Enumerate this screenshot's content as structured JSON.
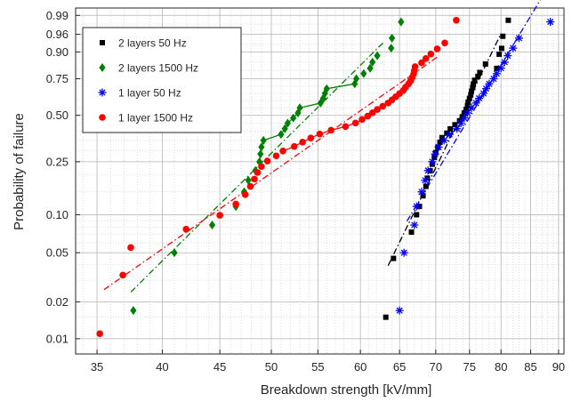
{
  "chart_data": {
    "type": "scatter",
    "title": "",
    "xlabel": "Breakdown strength [kV/mm]",
    "ylabel": "Probability of failure",
    "xscale": "log",
    "yscale": "weibull",
    "xlim": [
      33.5,
      91
    ],
    "ylim": [
      0.0075,
      0.995
    ],
    "grid": true,
    "legend_position": "top-left",
    "x_ticks": [
      35,
      40,
      45,
      50,
      55,
      60,
      65,
      70,
      75,
      80,
      85,
      90
    ],
    "x_tick_labels": [
      "35",
      "40",
      "45",
      "50",
      "55",
      "60",
      "65",
      "70",
      "75",
      "80",
      "85",
      "90"
    ],
    "y_ticks": [
      0.01,
      0.02,
      0.05,
      0.1,
      0.25,
      0.5,
      0.75,
      0.9,
      0.96,
      0.99
    ],
    "y_tick_labels": [
      "0.01",
      "0.02",
      "0.05",
      "0.10",
      "0.25",
      "0.50",
      "0.75",
      "0.90",
      "0.96",
      "0.99"
    ],
    "series": [
      {
        "name": "2 layers 50 Hz",
        "marker": "square",
        "color": "#000000",
        "points": [
          [
            63.2,
            0.015
          ],
          [
            64.2,
            0.045
          ],
          [
            66.6,
            0.073
          ],
          [
            67.3,
            0.1
          ],
          [
            67.7,
            0.116
          ],
          [
            68.2,
            0.14
          ],
          [
            68.6,
            0.165
          ],
          [
            68.8,
            0.19
          ],
          [
            69.2,
            0.215
          ],
          [
            69.5,
            0.24
          ],
          [
            69.8,
            0.268
          ],
          [
            70.0,
            0.29
          ],
          [
            70.3,
            0.315
          ],
          [
            70.6,
            0.34
          ],
          [
            70.9,
            0.365
          ],
          [
            71.6,
            0.39
          ],
          [
            72.1,
            0.415
          ],
          [
            72.8,
            0.44
          ],
          [
            73.5,
            0.465
          ],
          [
            73.9,
            0.49
          ],
          [
            74.2,
            0.515
          ],
          [
            74.5,
            0.54
          ],
          [
            74.7,
            0.565
          ],
          [
            74.8,
            0.59
          ],
          [
            75.0,
            0.615
          ],
          [
            75.2,
            0.64
          ],
          [
            75.3,
            0.665
          ],
          [
            75.5,
            0.69
          ],
          [
            75.6,
            0.715
          ],
          [
            75.8,
            0.74
          ],
          [
            76.3,
            0.765
          ],
          [
            76.6,
            0.79
          ],
          [
            77.5,
            0.84
          ],
          [
            79.3,
            0.815
          ],
          [
            79.7,
            0.89
          ],
          [
            80.1,
            0.915
          ],
          [
            80.3,
            0.955
          ],
          [
            81.2,
            0.985
          ]
        ],
        "fit": {
          "style": "dash-dot",
          "x_range": [
            63.5,
            80.0
          ]
        }
      },
      {
        "name": "2 layers 1500 Hz",
        "marker": "diamond",
        "color": "#007f00",
        "points": [
          [
            37.7,
            0.017
          ],
          [
            41.0,
            0.05
          ],
          [
            44.3,
            0.083
          ],
          [
            46.5,
            0.116
          ],
          [
            47.3,
            0.15
          ],
          [
            47.7,
            0.183
          ],
          [
            48.4,
            0.216
          ],
          [
            48.8,
            0.25
          ],
          [
            48.9,
            0.283
          ],
          [
            49.0,
            0.316
          ],
          [
            49.2,
            0.35
          ],
          [
            51.0,
            0.383
          ],
          [
            51.4,
            0.416
          ],
          [
            51.7,
            0.45
          ],
          [
            52.3,
            0.483
          ],
          [
            52.8,
            0.516
          ],
          [
            53.0,
            0.55
          ],
          [
            55.3,
            0.583
          ],
          [
            55.6,
            0.616
          ],
          [
            55.8,
            0.65
          ],
          [
            56.0,
            0.683
          ],
          [
            59.3,
            0.716
          ],
          [
            59.5,
            0.75
          ],
          [
            60.4,
            0.783
          ],
          [
            61.2,
            0.816
          ],
          [
            61.5,
            0.85
          ],
          [
            62.1,
            0.883
          ],
          [
            63.9,
            0.916
          ],
          [
            64.0,
            0.95
          ],
          [
            65.2,
            0.983
          ]
        ],
        "fit": {
          "style": "dash-dot",
          "x_range": [
            37.5,
            63.0
          ]
        }
      },
      {
        "name": "1 layer 50 Hz",
        "marker": "asterisk",
        "color": "#0000ff",
        "points": [
          [
            65.0,
            0.017
          ],
          [
            65.6,
            0.05
          ],
          [
            67.0,
            0.083
          ],
          [
            67.3,
            0.116
          ],
          [
            68.0,
            0.15
          ],
          [
            68.5,
            0.183
          ],
          [
            68.9,
            0.216
          ],
          [
            69.5,
            0.25
          ],
          [
            69.9,
            0.283
          ],
          [
            70.4,
            0.316
          ],
          [
            71.2,
            0.35
          ],
          [
            72.0,
            0.383
          ],
          [
            73.1,
            0.416
          ],
          [
            73.7,
            0.45
          ],
          [
            74.2,
            0.483
          ],
          [
            74.7,
            0.516
          ],
          [
            75.3,
            0.55
          ],
          [
            76.0,
            0.583
          ],
          [
            76.5,
            0.616
          ],
          [
            77.2,
            0.65
          ],
          [
            77.6,
            0.683
          ],
          [
            78.1,
            0.716
          ],
          [
            78.8,
            0.75
          ],
          [
            79.3,
            0.783
          ],
          [
            80.0,
            0.816
          ],
          [
            80.6,
            0.85
          ],
          [
            81.1,
            0.883
          ],
          [
            82.0,
            0.916
          ],
          [
            83.0,
            0.95
          ],
          [
            88.5,
            0.983
          ]
        ],
        "fit": {
          "style": "dash-dot",
          "x_range": [
            66.0,
            88.0
          ]
        }
      },
      {
        "name": "1 layer 1500 Hz",
        "marker": "circle",
        "color": "#ff0000",
        "points": [
          [
            35.2,
            0.011
          ],
          [
            36.9,
            0.033
          ],
          [
            37.5,
            0.055
          ],
          [
            42.0,
            0.077
          ],
          [
            45.0,
            0.099
          ],
          [
            46.5,
            0.121
          ],
          [
            47.4,
            0.143
          ],
          [
            47.9,
            0.165
          ],
          [
            48.3,
            0.187
          ],
          [
            48.6,
            0.209
          ],
          [
            49.0,
            0.231
          ],
          [
            49.6,
            0.253
          ],
          [
            50.5,
            0.275
          ],
          [
            51.2,
            0.297
          ],
          [
            52.4,
            0.319
          ],
          [
            53.3,
            0.341
          ],
          [
            54.2,
            0.363
          ],
          [
            55.2,
            0.385
          ],
          [
            56.5,
            0.407
          ],
          [
            58.2,
            0.429
          ],
          [
            59.4,
            0.451
          ],
          [
            60.2,
            0.473
          ],
          [
            60.9,
            0.495
          ],
          [
            61.5,
            0.517
          ],
          [
            62.1,
            0.539
          ],
          [
            62.8,
            0.561
          ],
          [
            63.5,
            0.583
          ],
          [
            64.0,
            0.605
          ],
          [
            64.5,
            0.627
          ],
          [
            65.0,
            0.649
          ],
          [
            65.5,
            0.671
          ],
          [
            65.8,
            0.693
          ],
          [
            66.2,
            0.715
          ],
          [
            66.5,
            0.737
          ],
          [
            66.7,
            0.759
          ],
          [
            66.9,
            0.781
          ],
          [
            67.0,
            0.803
          ],
          [
            67.1,
            0.825
          ],
          [
            68.0,
            0.847
          ],
          [
            68.6,
            0.869
          ],
          [
            69.3,
            0.891
          ],
          [
            70.2,
            0.913
          ],
          [
            71.3,
            0.935
          ],
          [
            73.0,
            0.985
          ]
        ],
        "fit": {
          "style": "dash-dot",
          "x_range": [
            35.5,
            70.5
          ]
        }
      }
    ]
  }
}
